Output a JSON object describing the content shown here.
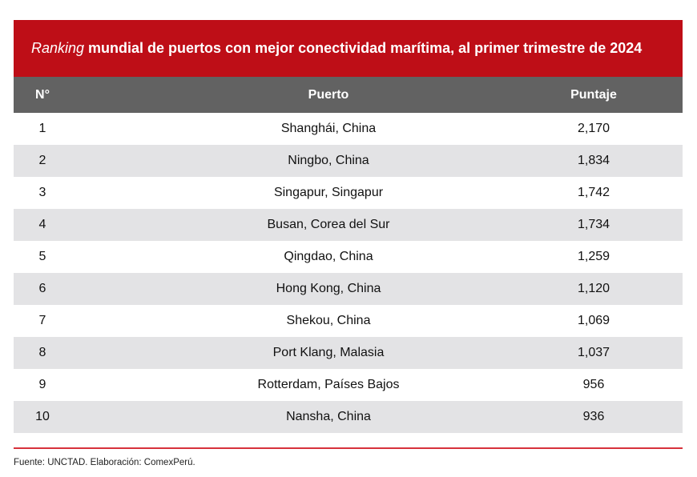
{
  "title": {
    "italic": "Ranking",
    "rest": "mundial de puertos con mejor conectividad marítima, al primer trimestre de 2024"
  },
  "columns": [
    "N°",
    "Puerto",
    "Puntaje"
  ],
  "rows": [
    [
      "1",
      "Shanghái, China",
      "2,170"
    ],
    [
      "2",
      "Ningbo, China",
      "1,834"
    ],
    [
      "3",
      "Singapur, Singapur",
      "1,742"
    ],
    [
      "4",
      "Busan, Corea del Sur",
      "1,734"
    ],
    [
      "5",
      "Qingdao, China",
      "1,259"
    ],
    [
      "6",
      "Hong Kong, China",
      "1,120"
    ],
    [
      "7",
      "Shekou, China",
      "1,069"
    ],
    [
      "8",
      "Port Klang, Malasia",
      "1,037"
    ],
    [
      "9",
      "Rotterdam, Países Bajos",
      "956"
    ],
    [
      "10",
      "Nansha, China",
      "936"
    ]
  ],
  "footer": "Fuente: UNCTAD.  Elaboración: ComexPerú.",
  "colors": {
    "title_bg": "#be0e17",
    "header_bg": "#626262",
    "alt_row": "#e3e3e5",
    "rule": "#d7323b"
  }
}
